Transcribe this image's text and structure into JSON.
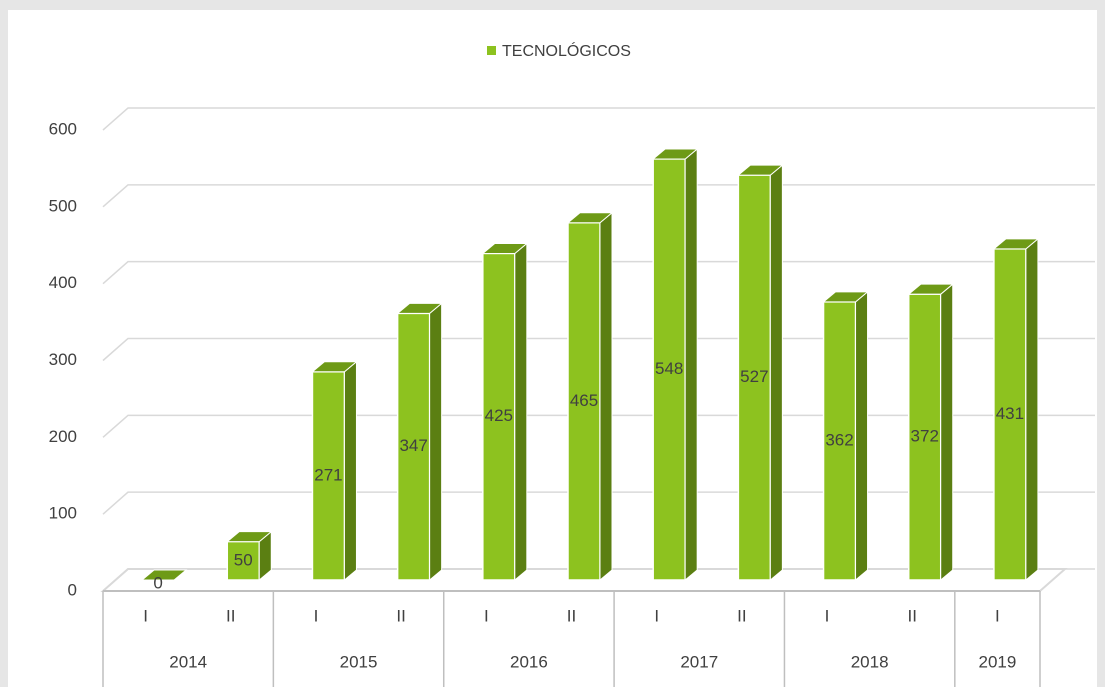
{
  "chart_data": {
    "type": "bar3d",
    "legend": "TECNOLÓGICOS",
    "categories": [
      "I",
      "II",
      "I",
      "II",
      "I",
      "II",
      "I",
      "II",
      "I",
      "II",
      "I"
    ],
    "groups": [
      "2014",
      "2015",
      "2016",
      "2017",
      "2018",
      "2019"
    ],
    "values": [
      0,
      50,
      271,
      347,
      425,
      465,
      548,
      527,
      362,
      372,
      431
    ],
    "color": "#8dc21f",
    "side_color": "#5b7f12",
    "top_color": "#6e9a16",
    "ylim": [
      0,
      600
    ],
    "yticks": [
      0,
      100,
      200,
      300,
      400,
      500,
      600
    ],
    "grid": true,
    "legend_position": "top"
  }
}
